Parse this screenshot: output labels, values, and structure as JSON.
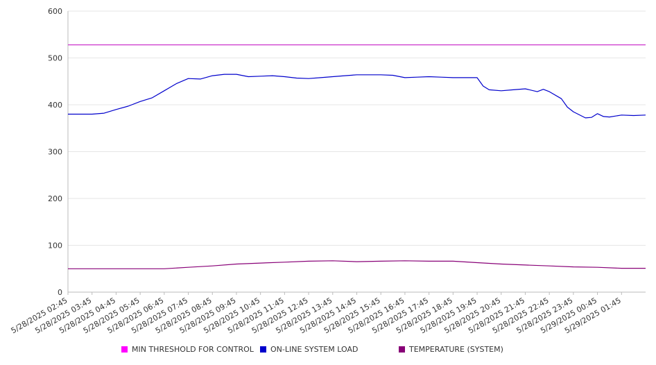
{
  "chart_data": {
    "type": "line",
    "title": "",
    "xlabel": "",
    "ylabel": "",
    "ylim": [
      0,
      600
    ],
    "y_ticks": [
      "0",
      "100",
      "200",
      "300",
      "400",
      "500",
      "600"
    ],
    "x_ticks": [
      "5/28/2025 02:45",
      "5/28/2025 03:45",
      "5/28/2025 04:45",
      "5/28/2025 05:45",
      "5/28/2025 06:45",
      "5/28/2025 07:45",
      "5/28/2025 08:45",
      "5/28/2025 09:45",
      "5/28/2025 10:45",
      "5/28/2025 11:45",
      "5/28/2025 12:45",
      "5/28/2025 13:45",
      "5/28/2025 14:45",
      "5/28/2025 15:45",
      "5/28/2025 16:45",
      "5/28/2025 17:45",
      "5/28/2025 18:45",
      "5/28/2025 19:45",
      "5/28/2025 20:45",
      "5/28/2025 21:45",
      "5/28/2025 22:45",
      "5/28/2025 23:45",
      "5/29/2025 00:45",
      "5/29/2025 01:45"
    ],
    "grid": true,
    "legend_position": "bottom",
    "series": [
      {
        "name": "MIN THRESHOLD FOR CONTROL",
        "color": "#cc33cc",
        "points": [
          [
            "5/28/2025 02:45",
            528
          ],
          [
            "5/29/2025 02:45",
            528
          ]
        ]
      },
      {
        "name": "ON-LINE SYSTEM LOAD",
        "color": "#0000cc",
        "points": [
          [
            "5/28/2025 02:45",
            380
          ],
          [
            "5/28/2025 03:15",
            380
          ],
          [
            "5/28/2025 03:45",
            380
          ],
          [
            "5/28/2025 04:15",
            382
          ],
          [
            "5/28/2025 04:45",
            390
          ],
          [
            "5/28/2025 05:15",
            397
          ],
          [
            "5/28/2025 05:45",
            407
          ],
          [
            "5/28/2025 06:15",
            415
          ],
          [
            "5/28/2025 06:45",
            430
          ],
          [
            "5/28/2025 07:15",
            445
          ],
          [
            "5/28/2025 07:45",
            456
          ],
          [
            "5/28/2025 08:15",
            455
          ],
          [
            "5/28/2025 08:45",
            462
          ],
          [
            "5/28/2025 09:15",
            465
          ],
          [
            "5/28/2025 09:45",
            465
          ],
          [
            "5/28/2025 10:15",
            460
          ],
          [
            "5/28/2025 10:45",
            461
          ],
          [
            "5/28/2025 11:15",
            462
          ],
          [
            "5/28/2025 11:45",
            460
          ],
          [
            "5/28/2025 12:15",
            457
          ],
          [
            "5/28/2025 12:45",
            456
          ],
          [
            "5/28/2025 13:15",
            458
          ],
          [
            "5/28/2025 13:45",
            460
          ],
          [
            "5/28/2025 14:15",
            462
          ],
          [
            "5/28/2025 14:45",
            464
          ],
          [
            "5/28/2025 15:15",
            464
          ],
          [
            "5/28/2025 15:45",
            464
          ],
          [
            "5/28/2025 16:15",
            463
          ],
          [
            "5/28/2025 16:45",
            458
          ],
          [
            "5/28/2025 17:15",
            459
          ],
          [
            "5/28/2025 17:45",
            460
          ],
          [
            "5/28/2025 18:15",
            459
          ],
          [
            "5/28/2025 18:45",
            458
          ],
          [
            "5/28/2025 19:15",
            458
          ],
          [
            "5/28/2025 19:45",
            458
          ],
          [
            "5/28/2025 20:00",
            440
          ],
          [
            "5/28/2025 20:15",
            432
          ],
          [
            "5/28/2025 20:45",
            430
          ],
          [
            "5/28/2025 21:15",
            432
          ],
          [
            "5/28/2025 21:45",
            434
          ],
          [
            "5/28/2025 22:15",
            428
          ],
          [
            "5/28/2025 22:30",
            433
          ],
          [
            "5/28/2025 22:45",
            428
          ],
          [
            "5/28/2025 23:15",
            413
          ],
          [
            "5/28/2025 23:30",
            395
          ],
          [
            "5/28/2025 23:45",
            385
          ],
          [
            "5/29/2025 00:15",
            372
          ],
          [
            "5/29/2025 00:30",
            373
          ],
          [
            "5/29/2025 00:45",
            381
          ],
          [
            "5/29/2025 01:00",
            375
          ],
          [
            "5/29/2025 01:15",
            374
          ],
          [
            "5/29/2025 01:45",
            378
          ],
          [
            "5/29/2025 02:15",
            377
          ],
          [
            "5/29/2025 02:45",
            378
          ]
        ]
      },
      {
        "name": "TEMPERATURE (SYSTEM)",
        "color": "#880077",
        "points": [
          [
            "5/28/2025 02:45",
            50
          ],
          [
            "5/28/2025 04:45",
            50
          ],
          [
            "5/28/2025 06:45",
            50
          ],
          [
            "5/28/2025 07:45",
            53
          ],
          [
            "5/28/2025 08:45",
            56
          ],
          [
            "5/28/2025 09:45",
            60
          ],
          [
            "5/28/2025 10:45",
            62
          ],
          [
            "5/28/2025 11:45",
            64
          ],
          [
            "5/28/2025 12:45",
            66
          ],
          [
            "5/28/2025 13:45",
            67
          ],
          [
            "5/28/2025 14:45",
            65
          ],
          [
            "5/28/2025 15:45",
            66
          ],
          [
            "5/28/2025 16:45",
            67
          ],
          [
            "5/28/2025 17:45",
            66
          ],
          [
            "5/28/2025 18:45",
            66
          ],
          [
            "5/28/2025 19:45",
            63
          ],
          [
            "5/28/2025 20:45",
            60
          ],
          [
            "5/28/2025 21:45",
            58
          ],
          [
            "5/28/2025 22:45",
            56
          ],
          [
            "5/28/2025 23:45",
            54
          ],
          [
            "5/29/2025 00:45",
            53
          ],
          [
            "5/29/2025 01:45",
            51
          ],
          [
            "5/29/2025 02:45",
            51
          ]
        ]
      }
    ]
  }
}
